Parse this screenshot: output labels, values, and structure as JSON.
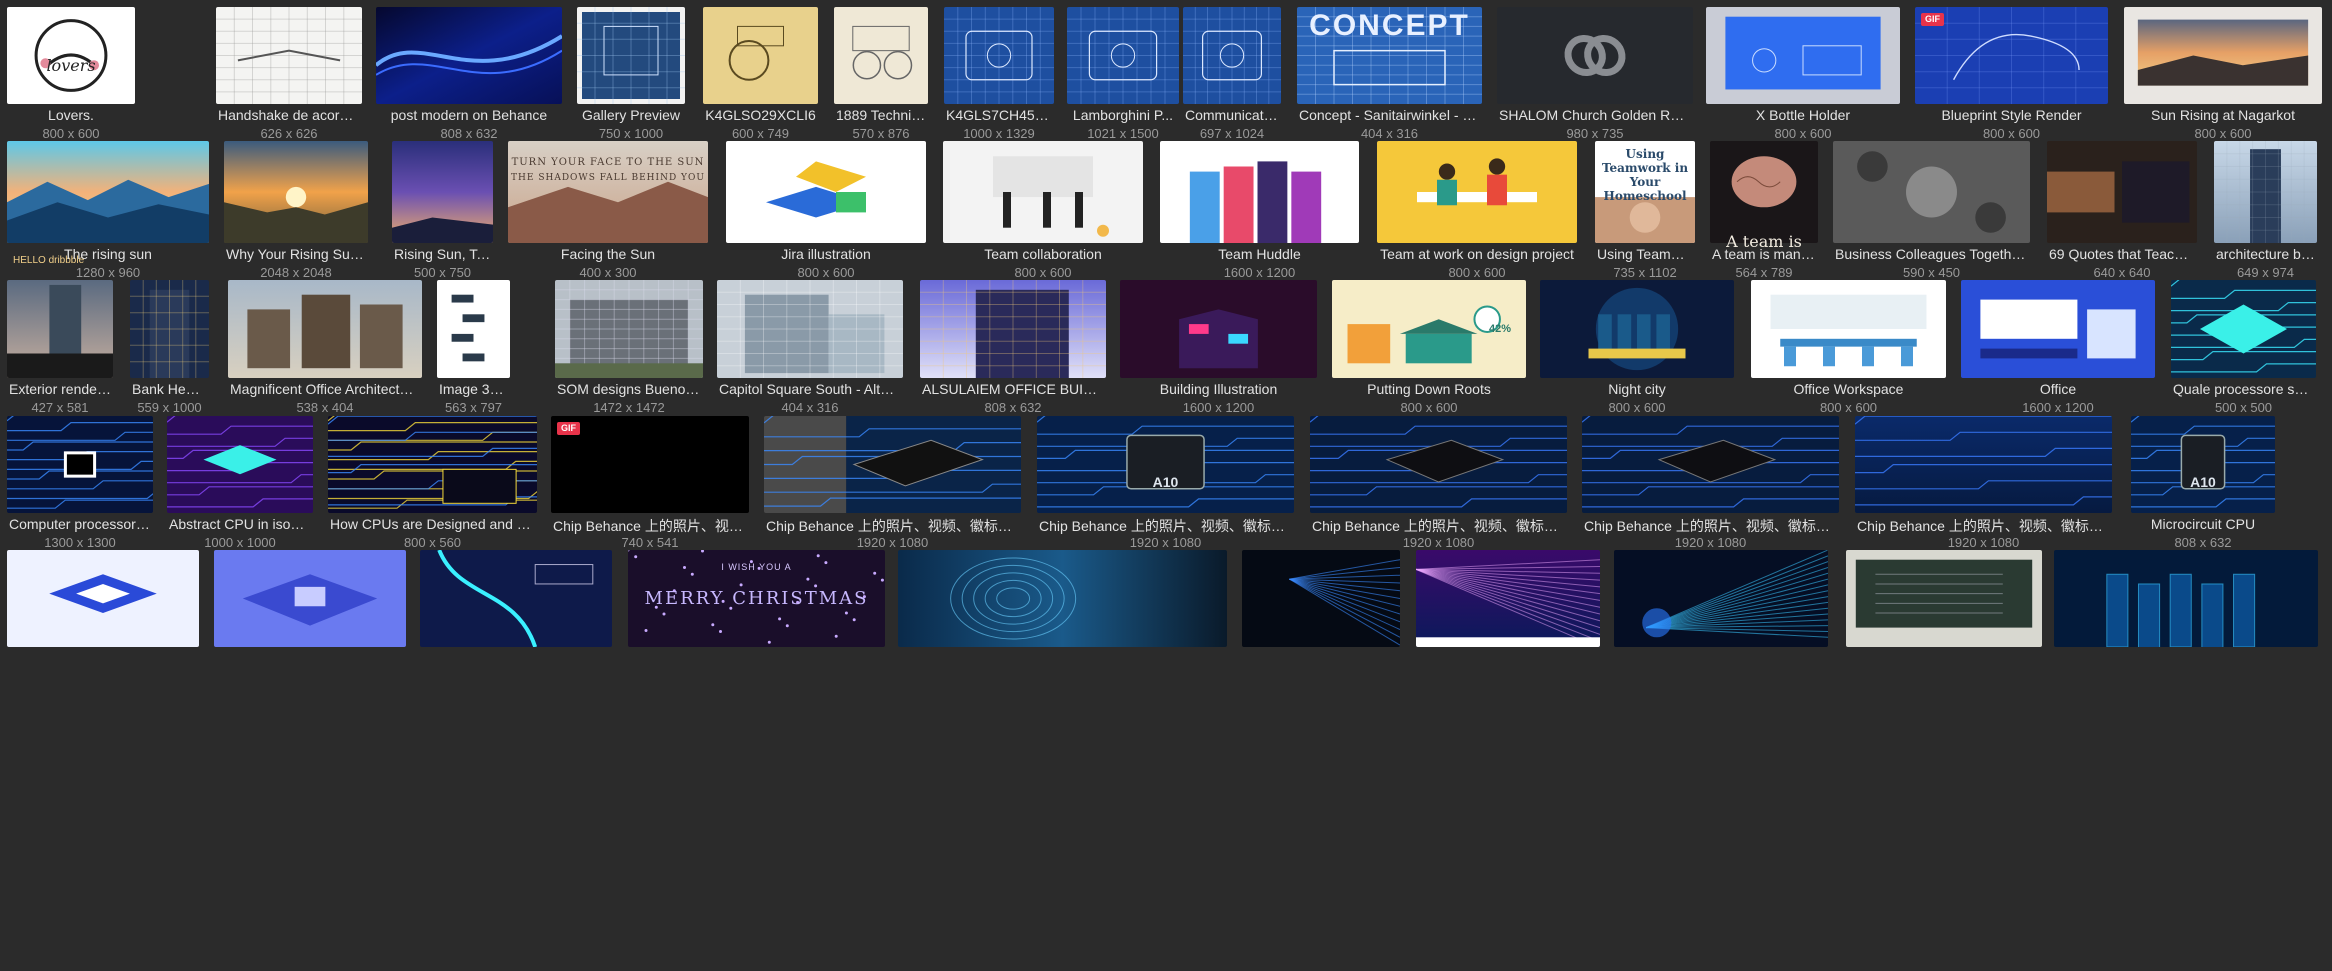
{
  "rows": [
    [
      {
        "title": "Lovers.",
        "dims": "800 x 600",
        "art": "lovers",
        "label": "lovers"
      },
      {
        "title": "Handshake de acordo ...",
        "dims": "626 x 626",
        "art": "sketch"
      },
      {
        "title": "post modern on Behance",
        "dims": "808 x 632",
        "art": "blue-wave"
      },
      {
        "title": "Gallery Preview",
        "dims": "750 x 1000",
        "art": "blueprint-framed"
      },
      {
        "title": "K4GLSO29XCLI6",
        "dims": "600 x 749",
        "art": "patent-yellow"
      },
      {
        "title": "1889 Technic...",
        "dims": "570 x 876",
        "art": "patent-cream"
      },
      {
        "title": "K4GLS7CH45G8C",
        "dims": "1000 x 1329",
        "art": "blueprint"
      },
      {
        "title": "Lamborghini P...",
        "dims": "1021 x 1500",
        "art": "blueprint"
      },
      {
        "title": "Communicatio...",
        "dims": "697 x 1024",
        "art": "blueprint"
      },
      {
        "title": "Concept - Sanitairwinkel - 3D ...",
        "dims": "404 x 316",
        "art": "concept",
        "label": "CONCEPT"
      },
      {
        "title": "SHALOM Church Golden Ratio",
        "dims": "980 x 735",
        "art": "shalom"
      },
      {
        "title": "X Bottle Holder",
        "dims": "800 x 600",
        "art": "bottle"
      },
      {
        "title": "Blueprint Style Render",
        "dims": "800 x 600",
        "art": "blueprint-hand",
        "gif": true
      },
      {
        "title": "Sun Rising at Nagarkot",
        "dims": "800 x 600",
        "art": "sunrise-photo"
      }
    ],
    [
      {
        "title": "The rising sun",
        "dims": "1280 x 960",
        "art": "mountains-blue",
        "label": "HELLO dribbble"
      },
      {
        "title": "Why Your Rising Sun Si...",
        "dims": "2048 x 2048",
        "art": "sun-valley"
      },
      {
        "title": "Rising Sun, Tai...",
        "dims": "500 x 750",
        "art": "gradient-sky"
      },
      {
        "title": "Facing the Sun",
        "dims": "400 x 300",
        "art": "facing-sun",
        "label": "TURN YOUR FACE TO THE SUN",
        "label2": "THE SHADOWS FALL BEHIND YOU"
      },
      {
        "title": "Jira illustration",
        "dims": "800 x 600",
        "art": "isometric"
      },
      {
        "title": "Team collaboration",
        "dims": "800 x 600",
        "art": "team-light"
      },
      {
        "title": "Team Huddle",
        "dims": "1600 x 1200",
        "art": "huddle"
      },
      {
        "title": "Team at work on design project",
        "dims": "800 x 600",
        "art": "yellow-team"
      },
      {
        "title": "Using Teamwor...",
        "dims": "735 x 1102",
        "art": "teamwork-text",
        "label": "Using Teamwork in Your Homeschool"
      },
      {
        "title": "A team is many ...",
        "dims": "564 x 789",
        "art": "brain",
        "label": "A team is"
      },
      {
        "title": "Business Colleagues Together T...",
        "dims": "590 x 450",
        "art": "colleagues"
      },
      {
        "title": "69 Quotes that Teach S...",
        "dims": "640 x 640",
        "art": "hands-quote"
      },
      {
        "title": "architecture bu...",
        "dims": "649 x 974",
        "art": "tower"
      }
    ],
    [
      {
        "title": "Exterior render a...",
        "dims": "427 x 581",
        "art": "tower-dusk"
      },
      {
        "title": "Bank Headq...",
        "dims": "559 x 1000",
        "art": "tower-night"
      },
      {
        "title": "Magnificent Office Architectur...",
        "dims": "538 x 404",
        "art": "office-blocks"
      },
      {
        "title": "Image 36 of 38 ...",
        "dims": "563 x 797",
        "art": "facade-white"
      },
      {
        "title": "SOM designs Buenos ...",
        "dims": "1472 x 1472",
        "art": "som"
      },
      {
        "title": "Capitol Square South - Altern...",
        "dims": "404 x 316",
        "art": "capitol"
      },
      {
        "title": "ALSULAIEM OFFICE BUILDING",
        "dims": "808 x 632",
        "art": "alsulaiem"
      },
      {
        "title": "Building Illustration",
        "dims": "1600 x 1200",
        "art": "neon-building"
      },
      {
        "title": "Putting Down Roots",
        "dims": "800 x 600",
        "art": "roots",
        "label": "42%"
      },
      {
        "title": "Night city",
        "dims": "800 x 600",
        "art": "night-city"
      },
      {
        "title": "Office Workspace",
        "dims": "800 x 600",
        "art": "office-light"
      },
      {
        "title": "Office",
        "dims": "1600 x 1200",
        "art": "office-blue"
      },
      {
        "title": "Quale processore sceg...",
        "dims": "500 x 500",
        "art": "chip-cyan"
      }
    ],
    [
      {
        "title": "Computer processor a...",
        "dims": "1300 x 1300",
        "art": "cpu-square"
      },
      {
        "title": "Abstract CPU in isome...",
        "dims": "1000 x 1000",
        "art": "cpu-iso-purple"
      },
      {
        "title": "How CPUs are Designed and Built...",
        "dims": "800 x 560",
        "art": "cpu-yellow"
      },
      {
        "title": "Chip Behance 上的照片、视频...",
        "dims": "740 x 541",
        "art": "black",
        "gif": true
      },
      {
        "title": "Chip Behance 上的照片、视频、徽标、插...",
        "dims": "1920 x 1080",
        "art": "chip-half"
      },
      {
        "title": "Chip Behance 上的照片、视频、徽标、插...",
        "dims": "1920 x 1080",
        "art": "chip-a10",
        "label": "A10"
      },
      {
        "title": "Chip Behance 上的照片、视频、徽标、插...",
        "dims": "1920 x 1080",
        "art": "chip-dark"
      },
      {
        "title": "Chip Behance 上的照片、视频、徽标、插...",
        "dims": "1920 x 1080",
        "art": "chip-dark"
      },
      {
        "title": "Chip Behance 上的照片、视频、徽标、插...",
        "dims": "1920 x 1080",
        "art": "blue-board"
      },
      {
        "title": "Microcircuit CPU",
        "dims": "808 x 632",
        "art": "chip-a10",
        "label": "A10"
      }
    ],
    [
      {
        "title": "",
        "dims": "",
        "art": "iso-light"
      },
      {
        "title": "",
        "dims": "",
        "art": "iso-blue"
      },
      {
        "title": "",
        "dims": "",
        "art": "cable"
      },
      {
        "title": "",
        "dims": "",
        "art": "christmas",
        "label": "I WISH YOU A",
        "label2": "MERRY CHRISTMAS"
      },
      {
        "title": "",
        "dims": "",
        "art": "fingerprint"
      },
      {
        "title": "",
        "dims": "",
        "art": "fiber"
      },
      {
        "title": "",
        "dims": "",
        "art": "fiber-purple"
      },
      {
        "title": "",
        "dims": "",
        "art": "fiber-blue"
      },
      {
        "title": "",
        "dims": "",
        "art": "blackboard"
      },
      {
        "title": "",
        "dims": "",
        "art": "blue-city"
      }
    ]
  ]
}
